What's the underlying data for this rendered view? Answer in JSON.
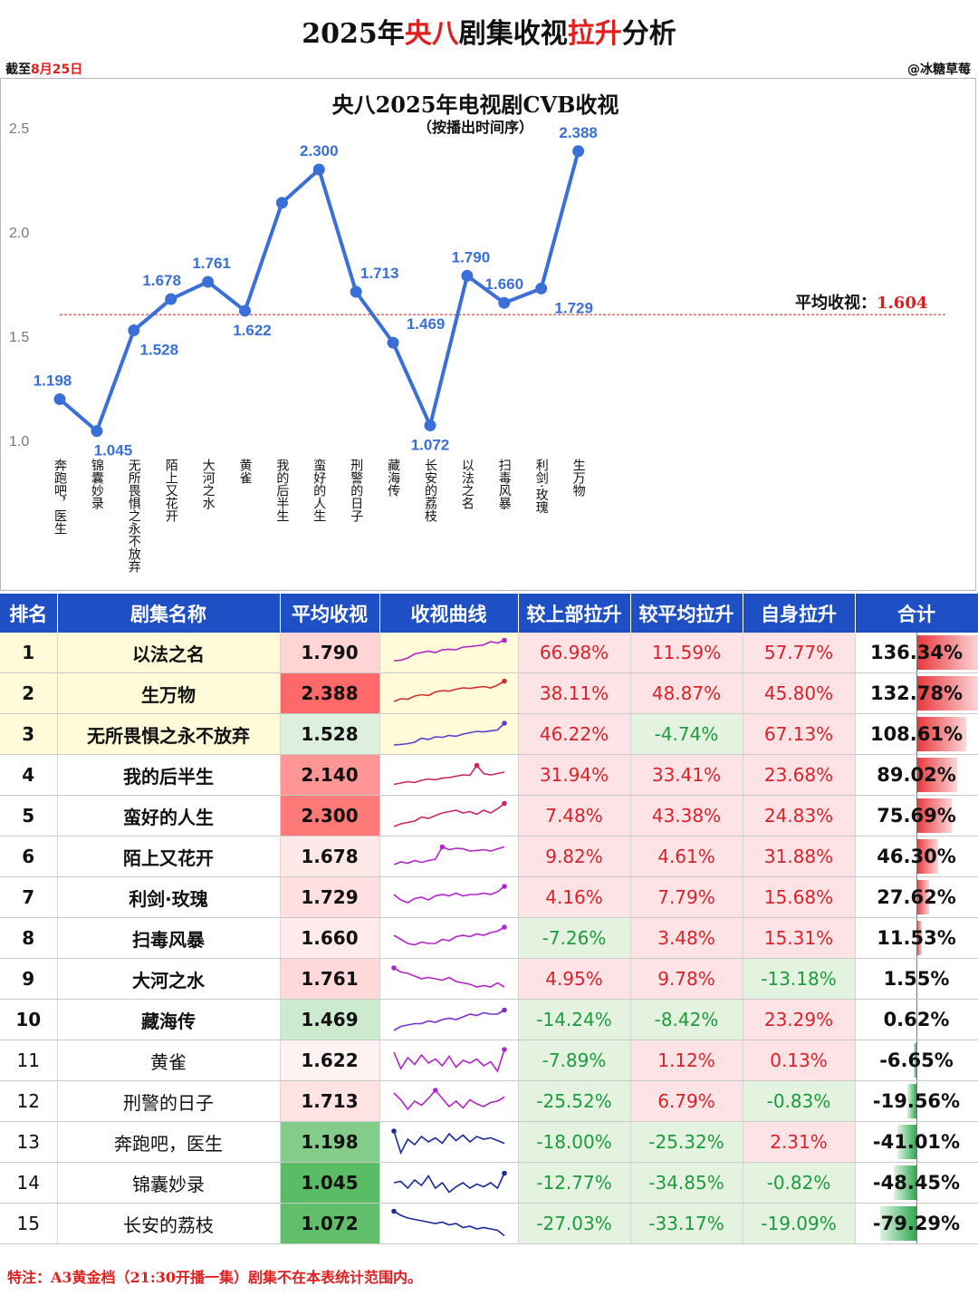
{
  "header": {
    "title_part1": "2025年",
    "title_part2": "央八",
    "title_part3": "剧集收视",
    "title_part4": "拉升",
    "title_part5": "分析",
    "cutoff_prefix": "截至",
    "cutoff_date": "8月25日",
    "author": "@冰糖草莓"
  },
  "chart_data": {
    "type": "line",
    "title": "央八2025年电视剧CVB收视",
    "subtitle": "（按播出时间序）",
    "categories": [
      "奔跑吧，医生",
      "锦囊妙录",
      "无所畏惧之永不放弃",
      "陌上又花开",
      "大河之水",
      "黄雀",
      "我的后半生",
      "蛮好的人生",
      "刑警的日子",
      "藏海传",
      "长安的荔枝",
      "以法之名",
      "扫毒风暴",
      "利剑·玫瑰",
      "生万物"
    ],
    "series": [
      {
        "values": [
          1.198,
          1.045,
          1.528,
          1.678,
          1.761,
          1.622,
          2.14,
          2.3,
          1.713,
          1.469,
          1.072,
          1.79,
          1.66,
          1.729,
          2.388
        ]
      }
    ],
    "data_labels": [
      "1.198",
      "1.045",
      "1.528",
      "1.678",
      "1.761",
      "1.622",
      "",
      "2.300",
      "1.713",
      "1.469",
      "1.072",
      "1.790",
      "1.660",
      "1.729",
      "2.388"
    ],
    "y_ticks": [
      "1.0",
      "1.5",
      "2.0",
      "2.5"
    ],
    "ylim": [
      1.0,
      2.5
    ],
    "reference_line": {
      "label": "平均收视：",
      "value": 1.604,
      "value_text": "1.604"
    },
    "line_color": "#3a6fd8",
    "avg_line_color": "#d91c1c"
  },
  "table": {
    "headers": [
      "排名",
      "剧集名称",
      "平均收视",
      "收视曲线",
      "较上部拉升",
      "较平均拉升",
      "自身拉升",
      "合计"
    ],
    "rows": [
      {
        "rank": "1",
        "name": "以法之名",
        "rating": "1.790",
        "rating_value": 1.79,
        "prev": "66.98%",
        "prev_v": 66.98,
        "avg": "11.59%",
        "avg_v": 11.59,
        "self": "57.77%",
        "self_v": 57.77,
        "total": "136.34%",
        "total_v": 136.34,
        "spark_color": "#b026c8",
        "spark": [
          0.2,
          0.22,
          0.3,
          0.45,
          0.5,
          0.55,
          0.5,
          0.6,
          0.62,
          0.6,
          0.7,
          0.72,
          0.75,
          0.78,
          0.9,
          0.85,
          0.95
        ]
      },
      {
        "rank": "2",
        "name": "生万物",
        "rating": "2.388",
        "rating_value": 2.388,
        "prev": "38.11%",
        "prev_v": 38.11,
        "avg": "48.87%",
        "avg_v": 48.87,
        "self": "45.80%",
        "self_v": 45.8,
        "total": "132.78%",
        "total_v": 132.78,
        "spark_color": "#d32f2f",
        "spark": [
          0.2,
          0.3,
          0.28,
          0.4,
          0.45,
          0.42,
          0.55,
          0.6,
          0.58,
          0.65,
          0.7,
          0.68,
          0.72,
          0.75,
          0.7,
          0.8,
          0.95
        ]
      },
      {
        "rank": "3",
        "name": "无所畏惧之永不放弃",
        "rating": "1.528",
        "rating_value": 1.528,
        "prev": "46.22%",
        "prev_v": 46.22,
        "avg": "-4.74%",
        "avg_v": -4.74,
        "self": "67.13%",
        "self_v": 67.13,
        "total": "108.61%",
        "total_v": 108.61,
        "spark_color": "#5c3fd0",
        "spark": [
          0.1,
          0.12,
          0.15,
          0.2,
          0.35,
          0.3,
          0.4,
          0.38,
          0.45,
          0.42,
          0.5,
          0.55,
          0.6,
          0.58,
          0.62,
          0.65,
          0.9
        ]
      },
      {
        "rank": "4",
        "name": "我的后半生",
        "rating": "2.140",
        "rating_value": 2.14,
        "prev": "31.94%",
        "prev_v": 31.94,
        "avg": "33.41%",
        "avg_v": 33.41,
        "self": "23.68%",
        "self_v": 23.68,
        "total": "89.02%",
        "total_v": 89.02,
        "spark_color": "#c8285c",
        "spark": [
          0.15,
          0.2,
          0.25,
          0.22,
          0.3,
          0.35,
          0.32,
          0.38,
          0.4,
          0.45,
          0.5,
          0.48,
          0.85,
          0.55,
          0.5,
          0.55,
          0.6
        ]
      },
      {
        "rank": "5",
        "name": "蛮好的人生",
        "rating": "2.300",
        "rating_value": 2.3,
        "prev": "7.48%",
        "prev_v": 7.48,
        "avg": "43.38%",
        "avg_v": 43.38,
        "self": "24.83%",
        "self_v": 24.83,
        "total": "75.69%",
        "total_v": 75.69,
        "spark_color": "#c8285c",
        "spark": [
          0.1,
          0.2,
          0.25,
          0.3,
          0.45,
          0.4,
          0.5,
          0.6,
          0.65,
          0.7,
          0.6,
          0.65,
          0.55,
          0.7,
          0.6,
          0.75,
          0.95
        ]
      },
      {
        "rank": "6",
        "name": "陌上又花开",
        "rating": "1.678",
        "rating_value": 1.678,
        "prev": "9.82%",
        "prev_v": 9.82,
        "avg": "4.61%",
        "avg_v": 4.61,
        "self": "31.88%",
        "self_v": 31.88,
        "total": "46.30%",
        "total_v": 46.3,
        "spark_color": "#b026c8",
        "spark": [
          0.2,
          0.3,
          0.25,
          0.35,
          0.28,
          0.35,
          0.4,
          0.85,
          0.75,
          0.8,
          0.78,
          0.7,
          0.72,
          0.75,
          0.7,
          0.78,
          0.85
        ]
      },
      {
        "rank": "7",
        "name": "利剑·玫瑰",
        "rating": "1.729",
        "rating_value": 1.729,
        "prev": "4.16%",
        "prev_v": 4.16,
        "avg": "7.79%",
        "avg_v": 7.79,
        "self": "15.68%",
        "self_v": 15.68,
        "total": "27.62%",
        "total_v": 27.62,
        "spark_color": "#b026c8",
        "spark": [
          0.6,
          0.4,
          0.3,
          0.45,
          0.5,
          0.4,
          0.55,
          0.6,
          0.55,
          0.65,
          0.55,
          0.6,
          0.6,
          0.65,
          0.6,
          0.7,
          0.9
        ]
      },
      {
        "rank": "8",
        "name": "扫毒风暴",
        "rating": "1.660",
        "rating_value": 1.66,
        "prev": "-7.26%",
        "prev_v": -7.26,
        "avg": "3.48%",
        "avg_v": 3.48,
        "self": "15.31%",
        "self_v": 15.31,
        "total": "11.53%",
        "total_v": 11.53,
        "spark_color": "#b026c8",
        "spark": [
          0.6,
          0.45,
          0.3,
          0.25,
          0.35,
          0.3,
          0.3,
          0.45,
          0.4,
          0.55,
          0.6,
          0.55,
          0.65,
          0.6,
          0.7,
          0.75,
          0.9
        ]
      },
      {
        "rank": "9",
        "name": "大河之水",
        "rating": "1.761",
        "rating_value": 1.761,
        "prev": "4.95%",
        "prev_v": 4.95,
        "avg": "9.78%",
        "avg_v": 9.78,
        "self": "-13.18%",
        "self_v": -13.18,
        "total": "1.55%",
        "total_v": 1.55,
        "spark_color": "#b026c8",
        "spark": [
          0.9,
          0.75,
          0.7,
          0.6,
          0.5,
          0.55,
          0.5,
          0.45,
          0.55,
          0.4,
          0.35,
          0.3,
          0.2,
          0.25,
          0.2,
          0.35,
          0.2
        ]
      },
      {
        "rank": "10",
        "name": "藏海传",
        "rating": "1.469",
        "rating_value": 1.469,
        "prev": "-14.24%",
        "prev_v": -14.24,
        "avg": "-8.42%",
        "avg_v": -8.42,
        "self": "23.29%",
        "self_v": 23.29,
        "total": "0.62%",
        "total_v": 0.62,
        "spark_color": "#7a2fc8",
        "spark": [
          0.1,
          0.25,
          0.3,
          0.35,
          0.35,
          0.45,
          0.4,
          0.5,
          0.55,
          0.5,
          0.6,
          0.7,
          0.65,
          0.75,
          0.7,
          0.7,
          0.85
        ]
      },
      {
        "rank": "11",
        "name": "黄雀",
        "rating": "1.622",
        "rating_value": 1.622,
        "prev": "-7.89%",
        "prev_v": -7.89,
        "avg": "1.12%",
        "avg_v": 1.12,
        "self": "0.13%",
        "self_v": 0.13,
        "total": "-6.65%",
        "total_v": -6.65,
        "spark_color": "#b026c8",
        "spark": [
          0.8,
          0.2,
          0.6,
          0.35,
          0.7,
          0.4,
          0.55,
          0.3,
          0.65,
          0.25,
          0.5,
          0.4,
          0.55,
          0.3,
          0.45,
          0.1,
          0.9
        ]
      },
      {
        "rank": "12",
        "name": "刑警的日子",
        "rating": "1.713",
        "rating_value": 1.713,
        "prev": "-25.52%",
        "prev_v": -25.52,
        "avg": "6.79%",
        "avg_v": 6.79,
        "self": "-0.83%",
        "self_v": -0.83,
        "total": "-19.56%",
        "total_v": -19.56,
        "spark_color": "#b026c8",
        "spark": [
          0.8,
          0.55,
          0.2,
          0.5,
          0.35,
          0.6,
          0.9,
          0.6,
          0.3,
          0.5,
          0.25,
          0.55,
          0.4,
          0.3,
          0.45,
          0.5,
          0.65
        ]
      },
      {
        "rank": "13",
        "name": "奔跑吧，医生",
        "rating": "1.198",
        "rating_value": 1.198,
        "prev": "-18.00%",
        "prev_v": -18.0,
        "avg": "-25.32%",
        "avg_v": -25.32,
        "self": "2.31%",
        "self_v": 2.31,
        "total": "-41.01%",
        "total_v": -41.01,
        "spark_color": "#1a2a9c",
        "spark": [
          0.9,
          0.1,
          0.6,
          0.4,
          0.7,
          0.5,
          0.65,
          0.45,
          0.8,
          0.55,
          0.75,
          0.5,
          0.7,
          0.6,
          0.65,
          0.55,
          0.45
        ]
      },
      {
        "rank": "14",
        "name": "锦囊妙录",
        "rating": "1.045",
        "rating_value": 1.045,
        "prev": "-12.77%",
        "prev_v": -12.77,
        "avg": "-34.85%",
        "avg_v": -34.85,
        "self": "-0.82%",
        "self_v": -0.82,
        "total": "-48.45%",
        "total_v": -48.45,
        "spark_color": "#1a2a9c",
        "spark": [
          0.5,
          0.55,
          0.3,
          0.6,
          0.4,
          0.75,
          0.3,
          0.5,
          0.15,
          0.35,
          0.5,
          0.3,
          0.45,
          0.35,
          0.5,
          0.3,
          0.85
        ]
      },
      {
        "rank": "15",
        "name": "长安的荔枝",
        "rating": "1.072",
        "rating_value": 1.072,
        "prev": "-27.03%",
        "prev_v": -27.03,
        "avg": "-33.17%",
        "avg_v": -33.17,
        "self": "-19.09%",
        "self_v": -19.09,
        "total": "-79.29%",
        "total_v": -79.29,
        "spark_color": "#1a2a9c",
        "spark": [
          0.95,
          0.8,
          0.7,
          0.65,
          0.6,
          0.55,
          0.5,
          0.55,
          0.45,
          0.5,
          0.35,
          0.4,
          0.3,
          0.35,
          0.3,
          0.25,
          0.05
        ]
      }
    ]
  },
  "footnote": "特注：A3黄金档（21:30开播一集）剧集不在本表统计范围内。"
}
